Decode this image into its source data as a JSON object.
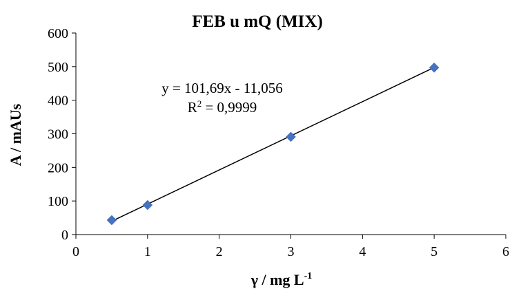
{
  "chart_data": {
    "type": "scatter",
    "title": "FEB u mQ (MIX)",
    "xlabel": "γ / mg L",
    "xlabel_superscript": "-1",
    "ylabel": "A / mAUs",
    "xlim": [
      0,
      6
    ],
    "ylim": [
      0,
      600
    ],
    "xticks": [
      0,
      1,
      2,
      3,
      4,
      5,
      6
    ],
    "yticks": [
      0,
      100,
      200,
      300,
      400,
      500,
      600
    ],
    "grid": false,
    "legend": "none",
    "series": [
      {
        "x": [
          0.5,
          1,
          3,
          5
        ],
        "y": [
          43,
          88,
          291,
          497
        ],
        "marker": "diamond",
        "color": "#4472C4"
      }
    ],
    "trendline": {
      "type": "linear",
      "slope": 101.69,
      "intercept": -11.056,
      "x_range": [
        0.5,
        5
      ],
      "color": "#000000"
    },
    "annotations": {
      "equation": "y = 101,69x - 11,056",
      "r_squared_prefix": "R",
      "r_squared_superscript": "2",
      "r_squared_value": " = 0,9999"
    }
  }
}
